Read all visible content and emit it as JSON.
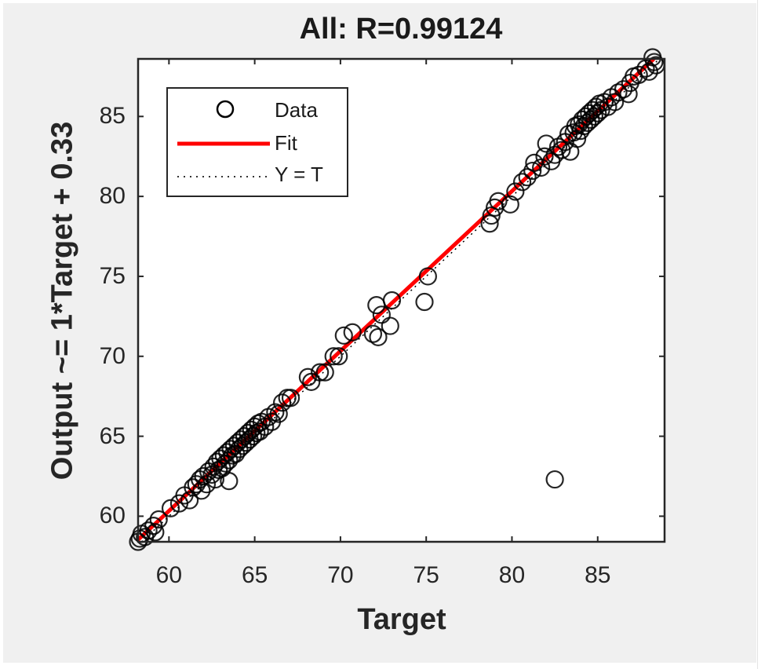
{
  "chart_data": {
    "type": "scatter",
    "title": "All: R=0.99124",
    "xlabel": "Target",
    "ylabel": "Output ~= 1*Target + 0.33",
    "xlim": [
      58.2,
      88.9
    ],
    "ylim": [
      58.4,
      88.6
    ],
    "xticks": [
      60,
      65,
      70,
      75,
      80,
      85
    ],
    "yticks": [
      60,
      65,
      70,
      75,
      80,
      85
    ],
    "grid": false,
    "legend_position": "upper-left",
    "legend": [
      {
        "label": "Data",
        "style": "black open circle marker"
      },
      {
        "label": "Fit",
        "style": "solid red line"
      },
      {
        "label": "Y = T",
        "style": "dotted black line"
      }
    ],
    "fit": {
      "slope": 1,
      "intercept": 0.33,
      "color": "#ff0000"
    },
    "identity_line": {
      "color": "#000000",
      "style": "dotted"
    },
    "series": [
      {
        "name": "Data",
        "marker": "circle-open",
        "color": "#000000",
        "points": [
          [
            58.2,
            58.4
          ],
          [
            58.3,
            58.6
          ],
          [
            58.4,
            58.9
          ],
          [
            58.6,
            58.7
          ],
          [
            58.8,
            59.1
          ],
          [
            59.1,
            59.4
          ],
          [
            59.4,
            59.8
          ],
          [
            59.2,
            59.0
          ],
          [
            60.1,
            60.5
          ],
          [
            60.6,
            60.8
          ],
          [
            60.9,
            61.3
          ],
          [
            61.2,
            61.0
          ],
          [
            61.4,
            61.8
          ],
          [
            61.6,
            62.0
          ],
          [
            61.8,
            62.3
          ],
          [
            61.9,
            61.6
          ],
          [
            62.0,
            62.5
          ],
          [
            62.2,
            62.0
          ],
          [
            62.3,
            62.8
          ],
          [
            62.5,
            62.6
          ],
          [
            62.6,
            63.1
          ],
          [
            62.7,
            62.3
          ],
          [
            62.8,
            63.4
          ],
          [
            62.9,
            62.9
          ],
          [
            63.0,
            63.6
          ],
          [
            63.1,
            63.0
          ],
          [
            63.2,
            63.8
          ],
          [
            63.3,
            63.3
          ],
          [
            63.4,
            64.0
          ],
          [
            63.5,
            63.5
          ],
          [
            63.5,
            62.2
          ],
          [
            63.6,
            64.2
          ],
          [
            63.7,
            63.8
          ],
          [
            63.8,
            64.4
          ],
          [
            63.9,
            63.9
          ],
          [
            64.0,
            64.6
          ],
          [
            64.1,
            64.2
          ],
          [
            64.2,
            64.8
          ],
          [
            64.3,
            64.4
          ],
          [
            64.4,
            65.0
          ],
          [
            64.5,
            64.6
          ],
          [
            64.6,
            65.2
          ],
          [
            64.7,
            64.8
          ],
          [
            64.8,
            65.4
          ],
          [
            64.9,
            65.0
          ],
          [
            65.0,
            65.6
          ],
          [
            65.1,
            65.2
          ],
          [
            65.2,
            65.8
          ],
          [
            65.3,
            65.3
          ],
          [
            65.4,
            65.9
          ],
          [
            65.6,
            65.6
          ],
          [
            65.8,
            66.2
          ],
          [
            66.0,
            65.9
          ],
          [
            66.2,
            66.5
          ],
          [
            66.4,
            66.4
          ],
          [
            66.6,
            67.1
          ],
          [
            66.9,
            67.4
          ],
          [
            67.1,
            67.4
          ],
          [
            68.1,
            68.7
          ],
          [
            68.3,
            68.4
          ],
          [
            68.8,
            69.0
          ],
          [
            69.1,
            69.0
          ],
          [
            69.6,
            70.0
          ],
          [
            69.9,
            70.0
          ],
          [
            70.2,
            71.3
          ],
          [
            70.7,
            71.5
          ],
          [
            71.9,
            71.4
          ],
          [
            72.2,
            71.2
          ],
          [
            72.1,
            73.2
          ],
          [
            72.4,
            72.6
          ],
          [
            72.9,
            71.9
          ],
          [
            73.0,
            73.5
          ],
          [
            75.1,
            75.0
          ],
          [
            74.9,
            73.4
          ],
          [
            78.7,
            78.3
          ],
          [
            78.8,
            78.8
          ],
          [
            79.0,
            79.3
          ],
          [
            79.2,
            79.7
          ],
          [
            79.9,
            79.5
          ],
          [
            80.2,
            80.3
          ],
          [
            80.6,
            80.9
          ],
          [
            80.9,
            81.2
          ],
          [
            81.2,
            81.6
          ],
          [
            81.3,
            82.1
          ],
          [
            81.7,
            81.8
          ],
          [
            81.9,
            82.5
          ],
          [
            82.0,
            83.3
          ],
          [
            82.3,
            82.2
          ],
          [
            82.5,
            82.6
          ],
          [
            82.7,
            83.1
          ],
          [
            82.9,
            82.9
          ],
          [
            83.1,
            83.4
          ],
          [
            83.3,
            83.9
          ],
          [
            83.4,
            82.8
          ],
          [
            83.6,
            84.0
          ],
          [
            83.7,
            84.4
          ],
          [
            83.8,
            83.6
          ],
          [
            83.9,
            84.5
          ],
          [
            84.0,
            84.1
          ],
          [
            84.1,
            84.8
          ],
          [
            84.2,
            84.4
          ],
          [
            84.3,
            85.0
          ],
          [
            84.4,
            84.6
          ],
          [
            84.5,
            85.2
          ],
          [
            84.6,
            84.8
          ],
          [
            84.7,
            85.4
          ],
          [
            84.8,
            85.0
          ],
          [
            84.9,
            85.6
          ],
          [
            85.0,
            85.2
          ],
          [
            85.1,
            85.8
          ],
          [
            85.2,
            85.4
          ],
          [
            85.4,
            85.9
          ],
          [
            85.6,
            85.6
          ],
          [
            85.8,
            86.2
          ],
          [
            86.0,
            85.9
          ],
          [
            86.2,
            86.5
          ],
          [
            86.5,
            86.7
          ],
          [
            86.8,
            86.4
          ],
          [
            86.9,
            87.1
          ],
          [
            87.1,
            87.5
          ],
          [
            87.4,
            87.6
          ],
          [
            87.8,
            88.0
          ],
          [
            88.0,
            87.8
          ],
          [
            88.3,
            88.4
          ],
          [
            88.4,
            88.2
          ],
          [
            88.2,
            88.7
          ],
          [
            82.5,
            62.3
          ]
        ]
      }
    ]
  },
  "figure": {
    "background": "#f0f0f0",
    "axes_background": "#ffffff",
    "axes_color": "#262626",
    "fit_color": "#ff0000"
  }
}
